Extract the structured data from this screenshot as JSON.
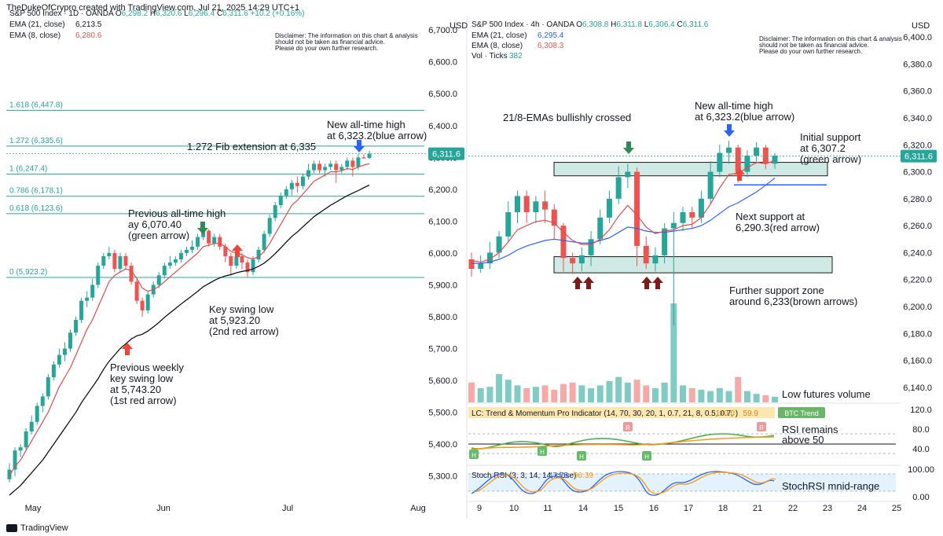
{
  "header": {
    "text": "TheDukeOfCrypro created with TradingView.com, Jul 21, 2025 14:29 UTC+1"
  },
  "footer": {
    "brand": "TradingView"
  },
  "colors": {
    "up": "#26a69a",
    "down": "#ef5350",
    "ema21_left": "#000000",
    "ema8": "#e04c4c",
    "ema21_right": "#2962ff",
    "fib": "#26a69a",
    "volume_up": "#80cbc4",
    "volume_down": "#f7a9a8",
    "arrow_green": "#2e8b57",
    "arrow_red": "#f44336",
    "arrow_blue": "#2962ff",
    "arrow_brown": "#7b1c1c",
    "zone": "#cfe9e4"
  },
  "left_panel": {
    "legend": {
      "symbol": "S&P 500 Index · 1D · OANDA",
      "O": "6,298.2",
      "H": "6,320.6",
      "L": "6,296.4",
      "C": "6,311.6",
      "change": "+10.2 (+0.16%)",
      "ema21_label": "EMA (21, close)",
      "ema21_value": "6,213.5",
      "ema8_label": "EMA (8, close)",
      "ema8_value": "6,280.6"
    },
    "disclaimer": [
      "Disclaimer: The information on this chart & analysis",
      "should not be taken as financial advice.",
      "Please do your own further research."
    ],
    "currency": "USD",
    "price_tag": "6,311.6",
    "fib_levels": [
      {
        "label": "1.618 (6,447.8)",
        "value": 6447.8
      },
      {
        "label": "1.272 (6,335.6)",
        "value": 6335.6
      },
      {
        "label": "1 (6,247.4)",
        "value": 6247.4
      },
      {
        "label": "0.786 (6,178.1)",
        "value": 6178.1
      },
      {
        "label": "0.618 (6,123.6)",
        "value": 6123.6
      },
      {
        "label": "0 (5,923.2)",
        "value": 5923.2
      }
    ],
    "annotations": {
      "fib_ext": "1.272 Fib extension at 6,335",
      "new_ath": [
        "New all-time high",
        "at 6,323.2(blue arrow)"
      ],
      "prev_ath": [
        "Previous all-time high",
        "ay 6,070.40",
        "(green arrow)"
      ],
      "key_swing": [
        "Key swing low",
        "at 5,923.20",
        "(2nd red arrow)"
      ],
      "prev_weekly": [
        "Previous weekly",
        "key swing low",
        "at 5,743.20",
        "(1st red arrow)"
      ]
    }
  },
  "right_panel": {
    "legend": {
      "symbol": "S&P 500 Index · 4h · OANDA",
      "O": "6,308.8",
      "H": "6,311.8",
      "L": "6,306.4",
      "C": "6,311.6",
      "ema21_label": "EMA (21, close)",
      "ema21_value": "6,295.4",
      "ema8_label": "EMA (8, close)",
      "ema8_value": "6,308.3",
      "vol_label": "Vol · Ticks",
      "vol_value": "382"
    },
    "disclaimer": [
      "Disclaimer: The information on this chart & analysis",
      "should not be taken as financial advice.",
      "Please do your own further research."
    ],
    "currency": "USD",
    "price_tag": "6,311.6",
    "annotations": {
      "ema_cross": "21/8-EMAs bullishly crossed",
      "new_ath": [
        "New all-time high",
        "at 6,323.2(blue arrow)"
      ],
      "initial_support": [
        "Initial support",
        "at 6,307.2",
        "(green arrow)"
      ],
      "next_support": [
        "Next support at",
        "6,290.3(red arrow)"
      ],
      "further_support": [
        "Further support zone",
        "around 6,233(brown arrows)"
      ],
      "low_volume": "Low futures volume",
      "rsi": [
        "RSI remains",
        "above 50"
      ],
      "stoch": "StochRSI mnid-range"
    },
    "lc_indicator": {
      "label": "LC: Trend & Momentum Pro Indicator (14, 70, 30, 20, 1, 0.7, 21, 8, 0.5, 0.7, )",
      "v1": "110.0",
      "v2": "59.9",
      "badge": "BTC Trend",
      "axis_ticks": [
        "120.0",
        "80.0",
        "40.0"
      ],
      "markers": [
        "R",
        "R",
        "H",
        "H",
        "H",
        "H"
      ]
    },
    "stoch_rsi": {
      "label": "Stoch RSI (3, 3, 14, 14, close)",
      "k": "47.75",
      "d": "56.39",
      "axis_ticks": [
        "100.00",
        "0.00"
      ]
    }
  },
  "chart_data": [
    {
      "type": "candlestick",
      "title": "S&P 500 Index · 1D · OANDA",
      "x_ticks": [
        "May",
        "Jun",
        "Jul",
        "Aug"
      ],
      "y_ticks": [
        "6,700.0",
        "6,600.0",
        "6,500.0",
        "6,400.0",
        "6,300.0",
        "6,200.0",
        "6,100.0",
        "6,000.0",
        "5,900.0",
        "5,800.0",
        "5,700.0",
        "5,600.0",
        "5,500.0",
        "5,400.0",
        "5,300.0"
      ],
      "ylim": [
        5240,
        6730
      ],
      "candles": [
        [
          5290,
          5320,
          5280,
          5340
        ],
        [
          5320,
          5380,
          5300,
          5390
        ],
        [
          5380,
          5390,
          5360,
          5400
        ],
        [
          5390,
          5440,
          5380,
          5450
        ],
        [
          5440,
          5470,
          5430,
          5490
        ],
        [
          5470,
          5520,
          5460,
          5530
        ],
        [
          5520,
          5550,
          5500,
          5560
        ],
        [
          5550,
          5610,
          5540,
          5620
        ],
        [
          5610,
          5650,
          5600,
          5660
        ],
        [
          5650,
          5680,
          5640,
          5700
        ],
        [
          5680,
          5700,
          5660,
          5720
        ],
        [
          5700,
          5750,
          5690,
          5760
        ],
        [
          5750,
          5790,
          5740,
          5800
        ],
        [
          5790,
          5850,
          5780,
          5860
        ],
        [
          5850,
          5860,
          5830,
          5880
        ],
        [
          5860,
          5900,
          5850,
          5920
        ],
        [
          5900,
          5960,
          5890,
          5970
        ],
        [
          5960,
          5990,
          5950,
          6000
        ],
        [
          5990,
          6000,
          5980,
          6020
        ],
        [
          6000,
          5950,
          5940,
          6010
        ],
        [
          5950,
          5990,
          5940,
          6000
        ],
        [
          5990,
          5960,
          5950,
          6000
        ],
        [
          5960,
          5910,
          5900,
          5970
        ],
        [
          5910,
          5850,
          5840,
          5920
        ],
        [
          5850,
          5820,
          5800,
          5860
        ],
        [
          5820,
          5870,
          5810,
          5880
        ],
        [
          5870,
          5900,
          5860,
          5910
        ],
        [
          5900,
          5930,
          5890,
          5940
        ],
        [
          5930,
          5960,
          5920,
          5970
        ],
        [
          5960,
          5970,
          5950,
          5990
        ],
        [
          5970,
          5980,
          5960,
          5990
        ],
        [
          5980,
          6000,
          5970,
          6010
        ],
        [
          6000,
          6010,
          5990,
          6020
        ],
        [
          6010,
          6020,
          6000,
          6040
        ],
        [
          6020,
          6050,
          6010,
          6060
        ],
        [
          6050,
          6070,
          6040,
          6080
        ],
        [
          6070,
          6030,
          6020,
          6075
        ],
        [
          6030,
          6050,
          6020,
          6060
        ],
        [
          6050,
          6020,
          6010,
          6060
        ],
        [
          6020,
          5990,
          5970,
          6030
        ],
        [
          5990,
          5960,
          5930,
          6000
        ],
        [
          5960,
          5990,
          5950,
          6000
        ],
        [
          5990,
          5970,
          5950,
          6000
        ],
        [
          5970,
          5940,
          5923,
          5980
        ],
        [
          5940,
          5980,
          5930,
          5990
        ],
        [
          5980,
          6010,
          5970,
          6020
        ],
        [
          6010,
          6060,
          6000,
          6070
        ],
        [
          6060,
          6110,
          6050,
          6120
        ],
        [
          6110,
          6150,
          6100,
          6160
        ],
        [
          6150,
          6180,
          6140,
          6190
        ],
        [
          6180,
          6200,
          6170,
          6210
        ],
        [
          6200,
          6220,
          6180,
          6230
        ],
        [
          6220,
          6210,
          6190,
          6240
        ],
        [
          6210,
          6240,
          6200,
          6250
        ],
        [
          6240,
          6260,
          6230,
          6280
        ],
        [
          6260,
          6280,
          6250,
          6290
        ],
        [
          6280,
          6260,
          6250,
          6290
        ],
        [
          6260,
          6270,
          6240,
          6280
        ],
        [
          6270,
          6280,
          6260,
          6290
        ],
        [
          6280,
          6260,
          6220,
          6290
        ],
        [
          6260,
          6270,
          6250,
          6280
        ],
        [
          6270,
          6290,
          6260,
          6300
        ],
        [
          6290,
          6270,
          6240,
          6300
        ],
        [
          6270,
          6300,
          6260,
          6310
        ],
        [
          6300,
          6297,
          6296,
          6310
        ],
        [
          6298,
          6312,
          6296,
          6321
        ]
      ],
      "series": [
        {
          "name": "EMA (21, close)",
          "values": [
            5240,
            5255,
            5270,
            5290,
            5310,
            5330,
            5350,
            5375,
            5400,
            5425,
            5450,
            5475,
            5500,
            5530,
            5555,
            5580,
            5605,
            5635,
            5660,
            5680,
            5700,
            5715,
            5730,
            5740,
            5745,
            5755,
            5768,
            5782,
            5798,
            5812,
            5826,
            5840,
            5853,
            5866,
            5880,
            5894,
            5904,
            5914,
            5922,
            5928,
            5932,
            5938,
            5942,
            5945,
            5950,
            5958,
            5968,
            5982,
            5998,
            6016,
            6034,
            6052,
            6066,
            6082,
            6098,
            6114,
            6126,
            6138,
            6150,
            6160,
            6170,
            6180,
            6188,
            6196,
            6205,
            6213.5
          ]
        },
        {
          "name": "EMA (8, close)",
          "values": [
            5300,
            5330,
            5350,
            5380,
            5410,
            5440,
            5470,
            5500,
            5540,
            5580,
            5610,
            5640,
            5680,
            5720,
            5760,
            5790,
            5830,
            5870,
            5910,
            5930,
            5940,
            5950,
            5945,
            5920,
            5890,
            5880,
            5885,
            5895,
            5910,
            5925,
            5940,
            5955,
            5970,
            5985,
            6000,
            6020,
            6025,
            6030,
            6030,
            6020,
            6005,
            6000,
            5995,
            5985,
            5982,
            5988,
            6005,
            6030,
            6060,
            6090,
            6120,
            6150,
            6165,
            6185,
            6205,
            6225,
            6235,
            6245,
            6255,
            6255,
            6258,
            6265,
            6262,
            6270,
            6276,
            6280.6
          ]
        }
      ]
    },
    {
      "type": "candlestick",
      "title": "S&P 500 Index · 4h · OANDA",
      "x_ticks": [
        "9",
        "10",
        "11",
        "14",
        "15",
        "16",
        "17",
        "18",
        "21",
        "22",
        "23",
        "24",
        "25"
      ],
      "y_ticks": [
        "6,400.0",
        "6,380.0",
        "6,360.0",
        "6,340.0",
        "6,320.0",
        "6,300.0",
        "6,280.0",
        "6,260.0",
        "6,240.0",
        "6,220.0",
        "6,200.0",
        "6,180.0",
        "6,160.0",
        "6,140.0"
      ],
      "ylim": [
        6130,
        6410
      ],
      "candles": [
        [
          6235,
          6228,
          6222,
          6240
        ],
        [
          6228,
          6232,
          6225,
          6238
        ],
        [
          6232,
          6240,
          6228,
          6248
        ],
        [
          6240,
          6252,
          6236,
          6256
        ],
        [
          6252,
          6270,
          6248,
          6278
        ],
        [
          6270,
          6282,
          6262,
          6286
        ],
        [
          6282,
          6270,
          6262,
          6286
        ],
        [
          6270,
          6278,
          6262,
          6282
        ],
        [
          6278,
          6272,
          6262,
          6286
        ],
        [
          6272,
          6260,
          6250,
          6276
        ],
        [
          6260,
          6236,
          6226,
          6262
        ],
        [
          6236,
          6232,
          6224,
          6240
        ],
        [
          6232,
          6238,
          6226,
          6244
        ],
        [
          6238,
          6250,
          6230,
          6256
        ],
        [
          6250,
          6266,
          6246,
          6272
        ],
        [
          6266,
          6280,
          6262,
          6286
        ],
        [
          6280,
          6296,
          6276,
          6304
        ],
        [
          6296,
          6300,
          6288,
          6306
        ],
        [
          6300,
          6245,
          6230,
          6303
        ],
        [
          6245,
          6232,
          6228,
          6252
        ],
        [
          6232,
          6238,
          6226,
          6244
        ],
        [
          6238,
          6258,
          6232,
          6262
        ],
        [
          6258,
          6262,
          6186,
          6270
        ],
        [
          6262,
          6270,
          6256,
          6274
        ],
        [
          6270,
          6266,
          6258,
          6274
        ],
        [
          6266,
          6280,
          6262,
          6286
        ],
        [
          6280,
          6300,
          6276,
          6308
        ],
        [
          6300,
          6314,
          6296,
          6320
        ],
        [
          6314,
          6318,
          6306,
          6323
        ],
        [
          6318,
          6300,
          6292,
          6320
        ],
        [
          6300,
          6312,
          6296,
          6316
        ],
        [
          6312,
          6318,
          6306,
          6322
        ],
        [
          6318,
          6306,
          6302,
          6320
        ],
        [
          6306,
          6312,
          6302,
          6314
        ]
      ],
      "series": [
        {
          "name": "EMA (21, close)",
          "values": [
            6232,
            6232,
            6233,
            6235,
            6238,
            6242,
            6245,
            6247,
            6249,
            6250,
            6249,
            6248,
            6247,
            6247,
            6249,
            6251,
            6255,
            6259,
            6258,
            6256,
            6255,
            6255,
            6256,
            6257,
            6258,
            6260,
            6264,
            6269,
            6274,
            6277,
            6281,
            6285,
            6290,
            6295.4
          ]
        },
        {
          "name": "EMA (8, close)",
          "values": [
            6234,
            6233,
            6235,
            6240,
            6248,
            6257,
            6260,
            6263,
            6264,
            6262,
            6255,
            6249,
            6246,
            6246,
            6250,
            6257,
            6267,
            6275,
            6268,
            6259,
            6254,
            6256,
            6257,
            6260,
            6261,
            6266,
            6276,
            6288,
            6298,
            6299,
            6303,
            6307,
            6306,
            6308.3
          ]
        }
      ],
      "volume": [
        14,
        10,
        11,
        20,
        16,
        12,
        10,
        11,
        12,
        9,
        13,
        14,
        12,
        10,
        12,
        15,
        18,
        14,
        16,
        12,
        10,
        14,
        70,
        12,
        10,
        9,
        8,
        10,
        8,
        18,
        8,
        6,
        5,
        4
      ]
    }
  ]
}
